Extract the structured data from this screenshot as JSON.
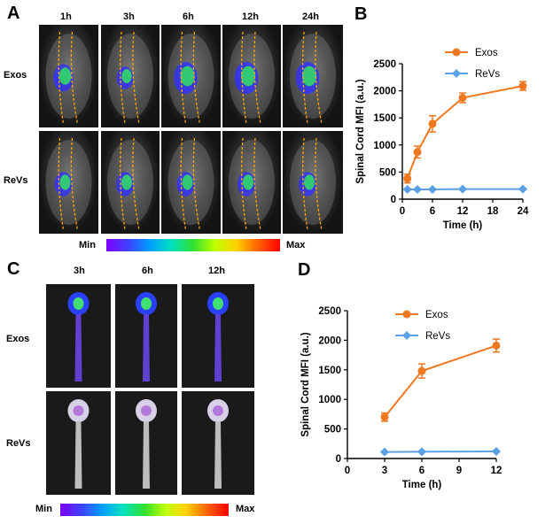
{
  "panel_a": {
    "letter": "A",
    "time_labels": [
      "1h",
      "3h",
      "6h",
      "12h",
      "24h"
    ],
    "row_labels": [
      "Exos",
      "ReVs"
    ],
    "scale_min": "Min",
    "scale_max": "Max"
  },
  "panel_c": {
    "letter": "C",
    "time_labels": [
      "3h",
      "6h",
      "12h"
    ],
    "row_labels": [
      "Exos",
      "ReVs"
    ],
    "scale_min": "Min",
    "scale_max": "Max"
  },
  "colors": {
    "exos": "#f07820",
    "revs": "#5aa0e6"
  },
  "chart_data": [
    {
      "panel": "B",
      "type": "line",
      "xlabel": "Time (h)",
      "ylabel": "Spinal Cord MFI (a.u.)",
      "xlim": [
        0,
        24
      ],
      "ylim": [
        0,
        2500
      ],
      "xticks": [
        0,
        6,
        12,
        18,
        24
      ],
      "yticks": [
        0,
        500,
        1000,
        1500,
        2000,
        2500
      ],
      "legend_position": "top-right",
      "series": [
        {
          "name": "Exos",
          "marker": "circle",
          "x": [
            1,
            3,
            6,
            12,
            24
          ],
          "y": [
            380,
            870,
            1390,
            1870,
            2090
          ],
          "err": [
            80,
            110,
            150,
            90,
            80
          ]
        },
        {
          "name": "ReVs",
          "marker": "diamond",
          "x": [
            1,
            3,
            6,
            12,
            24
          ],
          "y": [
            180,
            180,
            180,
            185,
            185
          ],
          "err": [
            10,
            10,
            10,
            10,
            10
          ]
        }
      ]
    },
    {
      "panel": "D",
      "type": "line",
      "xlabel": "Time (h)",
      "ylabel": "Spinal Cord MFI (a.u.)",
      "xlim": [
        0,
        12
      ],
      "ylim": [
        0,
        2500
      ],
      "xticks": [
        0,
        3,
        6,
        9,
        12
      ],
      "yticks": [
        0,
        500,
        1000,
        1500,
        2000,
        2500
      ],
      "legend_position": "top-right",
      "series": [
        {
          "name": "Exos",
          "marker": "circle",
          "x": [
            3,
            6,
            12
          ],
          "y": [
            700,
            1480,
            1910
          ],
          "err": [
            70,
            120,
            110
          ]
        },
        {
          "name": "ReVs",
          "marker": "diamond",
          "x": [
            3,
            6,
            12
          ],
          "y": [
            110,
            115,
            120
          ],
          "err": [
            8,
            8,
            8
          ]
        }
      ]
    }
  ]
}
